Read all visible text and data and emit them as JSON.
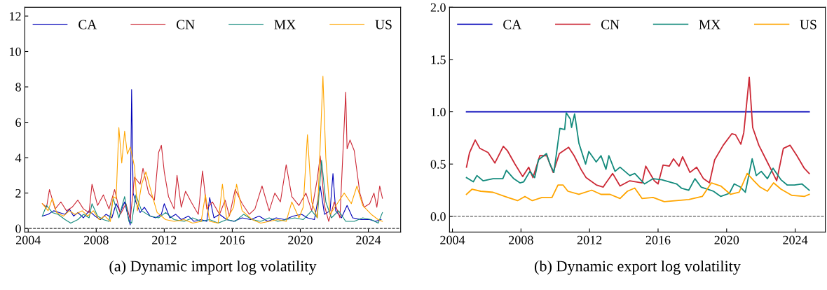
{
  "chart_data": [
    {
      "type": "line",
      "xlabel": "(a) Dynamic import log volatility",
      "xlim": [
        2003.8,
        2025.9
      ],
      "xticks": [
        2004,
        2008,
        2012,
        2016,
        2020,
        2024
      ],
      "ylim": [
        -0.2,
        12.5
      ],
      "yticks": [
        0,
        2,
        4,
        6,
        8,
        10,
        12
      ],
      "legend": "top",
      "grid": false,
      "ref_lines": [
        {
          "axis": "y",
          "value": 0,
          "color": "#333333",
          "line_style": "dashed"
        }
      ],
      "series": [
        {
          "name": "CA",
          "color": "#0000b8",
          "x": [
            2004.83,
            2005.17,
            2005.5,
            2005.83,
            2006.17,
            2006.42,
            2006.67,
            2006.92,
            2007.25,
            2007.58,
            2007.92,
            2008.25,
            2008.58,
            2008.92,
            2009.17,
            2009.42,
            2009.67,
            2009.92,
            2010.0,
            2010.08,
            2010.17,
            2010.33,
            2010.58,
            2010.83,
            2011.17,
            2011.5,
            2011.83,
            2012.0,
            2012.33,
            2012.67,
            2013.0,
            2013.42,
            2013.75,
            2014.17,
            2014.5,
            2014.67,
            2014.92,
            2015.25,
            2015.67,
            2016.08,
            2016.58,
            2017.08,
            2017.58,
            2018.08,
            2018.58,
            2019.08,
            2019.58,
            2020.08,
            2020.42,
            2020.83,
            2021.17,
            2021.42,
            2021.75,
            2021.92,
            2022.08,
            2022.42,
            2022.75,
            2023.08,
            2023.58,
            2024.08,
            2024.42,
            2024.75
          ],
          "values": [
            0.7,
            0.8,
            1.0,
            0.9,
            0.8,
            1.1,
            0.7,
            0.9,
            0.6,
            1.0,
            0.7,
            0.5,
            0.8,
            0.6,
            1.4,
            0.9,
            1.5,
            0.5,
            0.2,
            7.85,
            2.0,
            1.5,
            0.9,
            1.2,
            0.7,
            0.6,
            0.8,
            1.4,
            0.6,
            0.8,
            0.5,
            0.7,
            0.4,
            0.5,
            0.4,
            1.75,
            0.6,
            0.8,
            0.5,
            0.4,
            0.6,
            0.5,
            0.7,
            0.4,
            0.6,
            0.5,
            0.7,
            0.8,
            0.6,
            0.5,
            2.4,
            0.8,
            1.0,
            3.1,
            1.0,
            0.6,
            1.3,
            0.6,
            0.5,
            0.5,
            0.4,
            0.5
          ]
        },
        {
          "name": "CN",
          "color": "#cc2936",
          "x": [
            2004.83,
            2005.08,
            2005.25,
            2005.58,
            2005.92,
            2006.25,
            2006.58,
            2006.92,
            2007.25,
            2007.58,
            2007.75,
            2008.08,
            2008.42,
            2008.75,
            2009.08,
            2009.42,
            2009.75,
            2010.0,
            2010.25,
            2010.58,
            2010.75,
            2011.08,
            2011.42,
            2011.67,
            2011.83,
            2012.0,
            2012.25,
            2012.58,
            2012.75,
            2013.0,
            2013.25,
            2013.58,
            2014.0,
            2014.25,
            2014.5,
            2014.83,
            2015.25,
            2015.58,
            2015.83,
            2016.17,
            2016.58,
            2017.0,
            2017.33,
            2017.75,
            2018.17,
            2018.5,
            2018.83,
            2019.17,
            2019.5,
            2019.92,
            2020.33,
            2020.67,
            2021.0,
            2021.17,
            2021.42,
            2021.67,
            2022.0,
            2022.33,
            2022.67,
            2022.75,
            2022.92,
            2023.17,
            2023.5,
            2023.75,
            2024.08,
            2024.33,
            2024.5,
            2024.67,
            2024.83
          ],
          "values": [
            1.4,
            1.2,
            2.2,
            1.1,
            1.5,
            1.0,
            1.2,
            1.6,
            1.1,
            0.9,
            2.5,
            1.3,
            1.9,
            1.1,
            2.2,
            0.8,
            1.4,
            0.5,
            2.9,
            2.5,
            3.4,
            2.0,
            1.6,
            4.3,
            4.7,
            3.2,
            1.8,
            1.1,
            3.0,
            1.2,
            2.1,
            1.5,
            0.8,
            3.25,
            1.1,
            1.5,
            0.8,
            1.6,
            0.7,
            2.2,
            1.4,
            0.8,
            1.1,
            2.4,
            1.0,
            2.0,
            1.5,
            3.6,
            1.8,
            1.3,
            2.0,
            1.0,
            2.8,
            4.1,
            1.3,
            0.4,
            1.5,
            0.6,
            7.7,
            4.5,
            5.0,
            4.4,
            2.0,
            1.2,
            1.4,
            2.0,
            1.2,
            2.4,
            1.7
          ]
        },
        {
          "name": "MX",
          "color": "#138a7c",
          "x": [
            2004.83,
            2005.08,
            2005.42,
            2005.75,
            2006.17,
            2006.5,
            2006.92,
            2007.25,
            2007.58,
            2007.75,
            2008.08,
            2008.42,
            2008.75,
            2009.0,
            2009.33,
            2009.67,
            2009.92,
            2010.08,
            2010.33,
            2010.67,
            2011.17,
            2011.67,
            2012.08,
            2012.58,
            2013.17,
            2013.67,
            2014.17,
            2014.67,
            2015.17,
            2015.67,
            2016.17,
            2016.67,
            2017.17,
            2017.67,
            2018.17,
            2018.67,
            2019.17,
            2019.67,
            2020.17,
            2020.67,
            2021.0,
            2021.25,
            2021.5,
            2021.83,
            2022.25,
            2022.67,
            2023.17,
            2023.67,
            2024.17,
            2024.58,
            2024.83
          ],
          "values": [
            0.7,
            1.3,
            0.9,
            0.8,
            0.5,
            0.3,
            0.5,
            0.8,
            0.6,
            1.4,
            0.7,
            0.5,
            0.4,
            1.7,
            0.6,
            1.8,
            0.4,
            0.3,
            1.9,
            1.0,
            0.7,
            0.6,
            0.9,
            0.5,
            0.4,
            0.6,
            0.4,
            0.5,
            0.3,
            0.5,
            0.4,
            0.8,
            0.5,
            0.4,
            0.6,
            0.4,
            0.5,
            0.6,
            0.5,
            1.0,
            0.6,
            3.85,
            1.5,
            0.6,
            1.0,
            0.4,
            0.4,
            0.6,
            0.5,
            0.3,
            0.9
          ]
        },
        {
          "name": "US",
          "color": "#ffa500",
          "x": [
            2004.83,
            2005.17,
            2005.42,
            2005.67,
            2006.08,
            2006.42,
            2006.75,
            2007.17,
            2007.5,
            2007.83,
            2008.17,
            2008.5,
            2008.83,
            2009.0,
            2009.17,
            2009.33,
            2009.5,
            2009.67,
            2009.83,
            2010.0,
            2010.25,
            2010.42,
            2010.67,
            2010.92,
            2011.25,
            2011.58,
            2012.08,
            2012.58,
            2013.17,
            2013.67,
            2014.17,
            2014.42,
            2014.67,
            2015.17,
            2015.42,
            2015.67,
            2016.08,
            2016.25,
            2016.58,
            2017.17,
            2017.67,
            2018.17,
            2018.67,
            2019.17,
            2019.5,
            2019.92,
            2020.17,
            2020.42,
            2020.67,
            2021.0,
            2021.33,
            2021.5,
            2021.75,
            2022.17,
            2022.58,
            2023.0,
            2023.33,
            2023.67,
            2024.17,
            2024.58,
            2024.83
          ],
          "values": [
            1.4,
            1.0,
            1.7,
            0.9,
            0.7,
            1.0,
            0.8,
            1.0,
            0.7,
            1.0,
            0.5,
            0.7,
            0.4,
            1.8,
            1.7,
            5.7,
            3.7,
            5.5,
            4.2,
            4.6,
            3.5,
            1.0,
            2.5,
            3.2,
            2.0,
            0.9,
            0.5,
            0.4,
            0.5,
            0.3,
            0.4,
            1.9,
            0.4,
            0.3,
            2.5,
            0.5,
            1.2,
            2.5,
            1.0,
            0.5,
            0.3,
            0.4,
            0.5,
            0.4,
            1.5,
            0.6,
            1.2,
            5.3,
            1.5,
            0.6,
            8.6,
            4.0,
            0.8,
            1.4,
            2.0,
            1.4,
            2.4,
            1.3,
            0.8,
            0.5,
            0.4
          ]
        }
      ]
    },
    {
      "type": "line",
      "xlabel": "(b) Dynamic export log volatility",
      "xlim": [
        2003.83,
        2025.76
      ],
      "xticks": [
        2004,
        2008,
        2012,
        2016,
        2020,
        2024
      ],
      "ylim": [
        -0.15,
        2.0
      ],
      "yticks": [
        {
          "value": 0,
          "label": "0.0"
        },
        {
          "value": 0.5,
          "label": "0.5"
        },
        {
          "value": 1,
          "label": "1.0"
        },
        {
          "value": 1.5,
          "label": "1.5"
        },
        {
          "value": 2,
          "label": "2.0"
        }
      ],
      "legend": "top",
      "grid": false,
      "ref_lines": [
        {
          "axis": "y",
          "value": 0,
          "color": "#333333",
          "line_style": "dashed"
        }
      ],
      "series": [
        {
          "name": "CA",
          "color": "#0000b8",
          "x": [
            2004.82,
            2024.82
          ],
          "values": [
            1.0,
            1.0
          ]
        },
        {
          "name": "CN",
          "color": "#cc2936",
          "x": [
            2004.82,
            2005.0,
            2005.33,
            2005.6,
            2006.08,
            2006.48,
            2006.97,
            2007.2,
            2007.65,
            2008.1,
            2008.45,
            2008.7,
            2009.1,
            2009.5,
            2009.88,
            2010.24,
            2010.78,
            2011.1,
            2011.5,
            2011.8,
            2012.4,
            2012.8,
            2012.92,
            2013.35,
            2013.78,
            2014.35,
            2015.07,
            2015.28,
            2015.78,
            2016.0,
            2016.29,
            2016.65,
            2016.9,
            2017.22,
            2017.43,
            2017.86,
            2018.25,
            2018.65,
            2019.0,
            2019.3,
            2019.8,
            2020.3,
            2020.52,
            2020.83,
            2021.0,
            2021.32,
            2021.52,
            2021.88,
            2022.31,
            2022.74,
            2022.92,
            2023.31,
            2023.7,
            2024.1,
            2024.53,
            2024.82
          ],
          "values": [
            0.47,
            0.61,
            0.73,
            0.65,
            0.61,
            0.51,
            0.67,
            0.63,
            0.5,
            0.38,
            0.47,
            0.37,
            0.58,
            0.58,
            0.42,
            0.6,
            0.66,
            0.58,
            0.45,
            0.37,
            0.3,
            0.28,
            0.31,
            0.41,
            0.29,
            0.34,
            0.32,
            0.48,
            0.34,
            0.31,
            0.49,
            0.48,
            0.55,
            0.48,
            0.57,
            0.42,
            0.47,
            0.36,
            0.32,
            0.54,
            0.68,
            0.79,
            0.78,
            0.69,
            0.8,
            1.33,
            0.85,
            0.68,
            0.54,
            0.4,
            0.34,
            0.65,
            0.68,
            0.58,
            0.46,
            0.41
          ]
        },
        {
          "name": "MX",
          "color": "#138a7c",
          "x": [
            2004.82,
            2005.22,
            2005.43,
            2005.79,
            2006.37,
            2006.94,
            2007.15,
            2007.58,
            2007.94,
            2008.16,
            2008.52,
            2008.8,
            2009.02,
            2009.49,
            2009.69,
            2009.92,
            2010.27,
            2010.55,
            2010.64,
            2010.88,
            2010.95,
            2011.13,
            2011.38,
            2011.77,
            2011.96,
            2012.39,
            2012.67,
            2012.96,
            2013.13,
            2013.49,
            2013.78,
            2014.35,
            2014.64,
            2015.21,
            2015.71,
            2016.22,
            2017.08,
            2017.36,
            2017.79,
            2018.15,
            2018.51,
            2019.23,
            2019.66,
            2020.16,
            2020.44,
            2020.8,
            2021.09,
            2021.49,
            2021.73,
            2022.02,
            2022.38,
            2022.71,
            2023.17,
            2023.53,
            2023.96,
            2024.39,
            2024.82
          ],
          "values": [
            0.37,
            0.33,
            0.39,
            0.34,
            0.36,
            0.36,
            0.44,
            0.36,
            0.32,
            0.33,
            0.43,
            0.37,
            0.54,
            0.6,
            0.5,
            0.42,
            0.84,
            0.83,
            0.99,
            0.93,
            0.85,
            0.98,
            0.7,
            0.5,
            0.62,
            0.52,
            0.58,
            0.45,
            0.58,
            0.43,
            0.47,
            0.39,
            0.41,
            0.31,
            0.36,
            0.35,
            0.31,
            0.27,
            0.25,
            0.36,
            0.28,
            0.24,
            0.19,
            0.22,
            0.31,
            0.28,
            0.23,
            0.55,
            0.39,
            0.43,
            0.36,
            0.46,
            0.35,
            0.3,
            0.3,
            0.31,
            0.25
          ]
        },
        {
          "name": "US",
          "color": "#ffa500",
          "x": [
            2004.82,
            2005.15,
            2005.65,
            2006.37,
            2007.23,
            2007.8,
            2008.23,
            2008.66,
            2009.23,
            2009.81,
            2010.16,
            2010.45,
            2010.74,
            2011.38,
            2012.13,
            2012.67,
            2013.2,
            2013.78,
            2014.21,
            2014.64,
            2015.07,
            2015.71,
            2016.36,
            2017.08,
            2017.79,
            2018.58,
            2019.11,
            2019.66,
            2020.23,
            2020.73,
            2021.2,
            2021.59,
            2021.95,
            2022.38,
            2022.74,
            2023.17,
            2023.81,
            2024.53,
            2024.82
          ],
          "values": [
            0.21,
            0.26,
            0.24,
            0.23,
            0.18,
            0.15,
            0.19,
            0.15,
            0.18,
            0.18,
            0.3,
            0.3,
            0.24,
            0.21,
            0.25,
            0.21,
            0.21,
            0.17,
            0.24,
            0.27,
            0.17,
            0.18,
            0.14,
            0.15,
            0.16,
            0.19,
            0.32,
            0.29,
            0.21,
            0.23,
            0.41,
            0.34,
            0.28,
            0.24,
            0.32,
            0.26,
            0.2,
            0.19,
            0.21
          ]
        }
      ]
    }
  ]
}
